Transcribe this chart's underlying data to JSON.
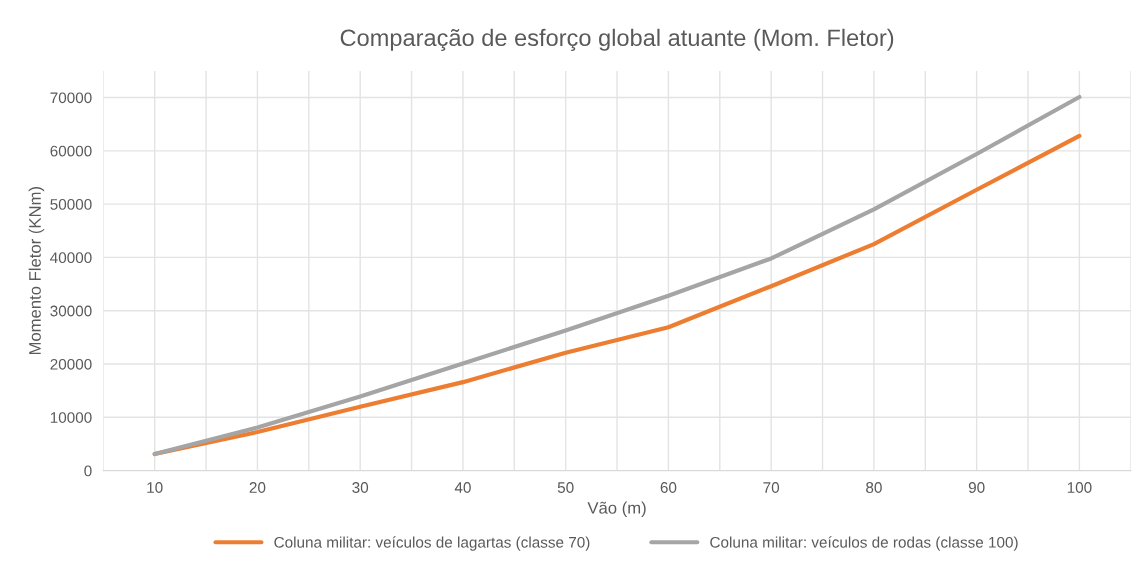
{
  "chart_data": {
    "type": "line",
    "title": "Comparação de esforço global atuante (Mom. Fletor)",
    "xlabel": "Vão (m)",
    "ylabel": "Momento Fletor (KNm)",
    "x": [
      10,
      20,
      30,
      40,
      50,
      60,
      70,
      80,
      90,
      100
    ],
    "series": [
      {
        "name": "Coluna militar: veículos de lagartas (classe 70)",
        "color": "#ed7d31",
        "values": [
          3100,
          7250,
          12000,
          16600,
          22100,
          26900,
          34600,
          42500,
          52700,
          62800
        ]
      },
      {
        "name": "Coluna militar: veículos de rodas (classe 100)",
        "color": "#a5a5a5",
        "values": [
          3100,
          8100,
          13900,
          20100,
          26300,
          32800,
          39800,
          49000,
          59400,
          70100
        ]
      }
    ],
    "xlim": [
      5,
      105
    ],
    "xticks": [
      {
        "value": 5,
        "label": null
      },
      10,
      {
        "value": 15,
        "label": null
      },
      20,
      {
        "value": 25,
        "label": null
      },
      30,
      {
        "value": 35,
        "label": null
      },
      40,
      {
        "value": 45,
        "label": null
      },
      50,
      {
        "value": 55,
        "label": null
      },
      60,
      {
        "value": 65,
        "label": null
      },
      70,
      {
        "value": 75,
        "label": null
      },
      80,
      {
        "value": 85,
        "label": null
      },
      90,
      {
        "value": 95,
        "label": null
      },
      100,
      {
        "value": 105,
        "label": null
      }
    ],
    "ylim": [
      0,
      75000
    ],
    "yticks": [
      0,
      10000,
      20000,
      30000,
      40000,
      50000,
      60000,
      70000
    ],
    "grid": true,
    "legend": "bottom",
    "marker": "none",
    "line_style": "solid"
  }
}
